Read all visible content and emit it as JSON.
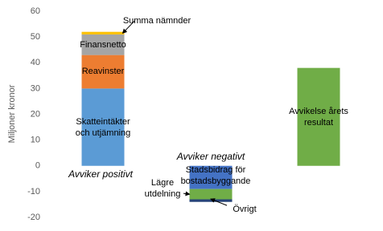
{
  "chart_data": {
    "type": "bar",
    "stacked": true,
    "y_label": "Miljoner kronor",
    "categories": [
      "Avviker positivt",
      "Avviker negativt",
      null
    ],
    "series": [
      {
        "name": "Skatteintäkter och utjämning",
        "color": "#5b9bd5",
        "values": [
          30,
          null,
          null
        ]
      },
      {
        "name": "Reavinster",
        "color": "#ed7d31",
        "values": [
          13,
          null,
          null
        ]
      },
      {
        "name": "Finansnetto",
        "color": "#a5a5a5",
        "values": [
          8,
          null,
          null
        ]
      },
      {
        "name": "Summa nämnder",
        "color": "#ffc000",
        "values": [
          1,
          null,
          null
        ]
      },
      {
        "name": "Stadsbidrag för bostadsbyggande",
        "color": "#4472c4",
        "values": [
          null,
          -9,
          null
        ]
      },
      {
        "name": "Lägre utdelning",
        "color": "#70ad47",
        "values": [
          null,
          -4,
          null
        ]
      },
      {
        "name": "Övrigt",
        "color": "#264478",
        "values": [
          null,
          -1,
          null
        ]
      },
      {
        "name": "Avvikelse årets resultat",
        "color": "#70ad47",
        "values": [
          null,
          null,
          38
        ]
      }
    ],
    "ylim": [
      -20,
      60
    ],
    "yticks": [
      -20,
      -10,
      0,
      10,
      20,
      30,
      40,
      50,
      60
    ]
  }
}
